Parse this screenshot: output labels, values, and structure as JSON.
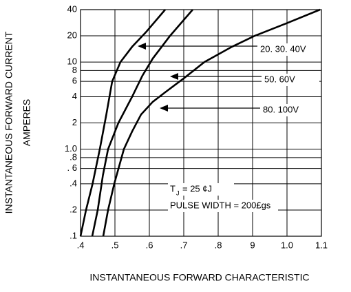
{
  "chart_data": {
    "type": "line",
    "y_label_lines": [
      "INSTANTANEOUS FORWARD CURRENT",
      "AMPERES"
    ],
    "x_label": "INSTANTANEOUS FORWARD CHARACTERISTIC",
    "log_y": true,
    "grid": true,
    "xlim": [
      0.4,
      1.1
    ],
    "xticks": [
      {
        "value": 0.4,
        "label": ".4"
      },
      {
        "value": 0.5,
        "label": ".5"
      },
      {
        "value": 0.6,
        "label": ".6"
      },
      {
        "value": 0.7,
        "label": ".7"
      },
      {
        "value": 0.8,
        "label": ".8"
      },
      {
        "value": 0.9,
        "label": "9"
      },
      {
        "value": 1.0,
        "label": "1.0"
      },
      1.1
    ],
    "ylim": [
      0.1,
      40
    ],
    "yticks": [
      {
        "value": 0.1,
        "label": ".1"
      },
      {
        "value": 0.2,
        "label": ".2"
      },
      {
        "value": 0.4,
        "label": ".4"
      },
      {
        "value": 0.6,
        "label": ". 6"
      },
      {
        "value": 0.8,
        "label": ".8"
      },
      {
        "value": 1.0,
        "label": "1.0"
      },
      2,
      4,
      6,
      8,
      10,
      20,
      40
    ],
    "series": [
      {
        "name": "20. 30. 40V",
        "color": "#000000",
        "x": [
          0.4,
          0.416,
          0.435,
          0.456,
          0.475,
          0.492,
          0.516,
          0.55,
          0.59,
          0.646
        ],
        "values": [
          0.1,
          0.2,
          0.4,
          1,
          2.5,
          6,
          10,
          15,
          22,
          40
        ]
      },
      {
        "name": "50. 60V",
        "color": "#000000",
        "x": [
          0.434,
          0.45,
          0.465,
          0.48,
          0.51,
          0.55,
          0.58,
          0.61,
          0.66,
          0.726
        ],
        "values": [
          0.1,
          0.2,
          0.5,
          1,
          2,
          4,
          7,
          11,
          20,
          40
        ]
      },
      {
        "name": "80. 100V",
        "color": "#000000",
        "x": [
          0.466,
          0.48,
          0.498,
          0.526,
          0.55,
          0.576,
          0.61,
          0.646,
          0.7,
          0.76,
          0.84,
          0.906,
          1.0,
          1.096
        ],
        "values": [
          0.1,
          0.2,
          0.4,
          1,
          1.6,
          2.5,
          3.5,
          4.5,
          6.5,
          10,
          15,
          20,
          28,
          40
        ]
      }
    ],
    "conditions": {
      "tj_symbol": "T",
      "tj_sub": "J",
      "tj_value": "= 25 ¢J",
      "pulse_width": "PULSE WIDTH = 200£gs"
    }
  }
}
